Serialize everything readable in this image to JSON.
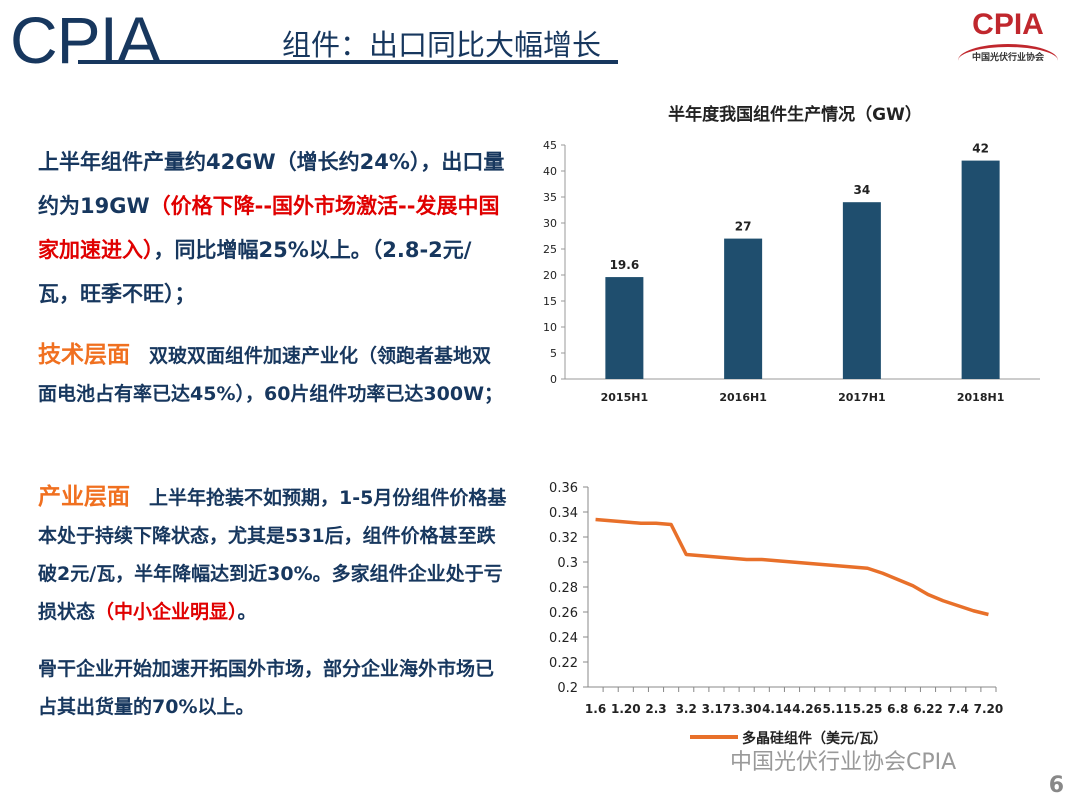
{
  "header": {
    "logo": "CPIA",
    "title": "组件：出口同比大幅增长",
    "corner_logo": "CPIA",
    "corner_sub": "中国光伏行业协会"
  },
  "body": {
    "p1a": "上半年组件产量约42GW（增长约24%），出口量约为19GW",
    "p1red": "（价格下降--国外市场激活--发展中国家加速进入）",
    "p1b": "，同比增幅25%以上。（2.8-2元/瓦，旺季不旺）；",
    "p2head": "技术层面",
    "p2": "　双玻双面组件加速产业化（领跑者基地双面电池占有率已达45%），60片组件功率已达300W；",
    "p3head": "产业层面",
    "p3a": "　上半年抢装不如预期，1-5月份组件价格基本处于持续下降状态，尤其是531后，组件价格甚至跌破2元/瓦，半年降幅达到近30%。多家组件企业处于亏损状态",
    "p3red": "（中小企业明显）",
    "p3b": "。",
    "p4": "骨干企业开始加速开拓国外市场，部分企业海外市场已占其出货量的70%以上。"
  },
  "watermark": "中国光伏行业协会CPIA",
  "page_number": "6",
  "chart_data": [
    {
      "type": "bar",
      "title": "半年度我国组件生产情况（GW）",
      "categories": [
        "2015H1",
        "2016H1",
        "2017H1",
        "2018H1"
      ],
      "values": [
        19.6,
        27,
        34,
        42
      ],
      "ylim": [
        0,
        45
      ],
      "yticks": [
        0,
        5,
        10,
        15,
        20,
        25,
        30,
        35,
        40,
        45
      ],
      "color": "#1f4e6e",
      "grid": false
    },
    {
      "type": "line",
      "legend": "多晶硅组件（美元/瓦）",
      "legend_placement": "bottom",
      "ylim": [
        0.2,
        0.36
      ],
      "yticks": [
        "0.2",
        "0.22",
        "0.24",
        "0.26",
        "0.28",
        "0.3",
        "0.32",
        "0.34",
        "0.36"
      ],
      "x_labels": [
        "1.6",
        "",
        "1.20",
        "",
        "2.3",
        "",
        "3.2",
        "",
        "3.17",
        "",
        "3.30",
        "",
        "4.14",
        "",
        "4.26",
        "",
        "5.11",
        "",
        "5.25",
        "",
        "6.8",
        "",
        "6.22",
        "",
        "7.4",
        "",
        "7.20"
      ],
      "values": [
        0.334,
        0.333,
        0.332,
        0.331,
        0.331,
        0.33,
        0.306,
        0.305,
        0.304,
        0.303,
        0.302,
        0.302,
        0.301,
        0.3,
        0.299,
        0.298,
        0.297,
        0.296,
        0.295,
        0.291,
        0.286,
        0.281,
        0.274,
        0.269,
        0.265,
        0.261,
        0.258
      ],
      "color": "#e8702a"
    }
  ]
}
